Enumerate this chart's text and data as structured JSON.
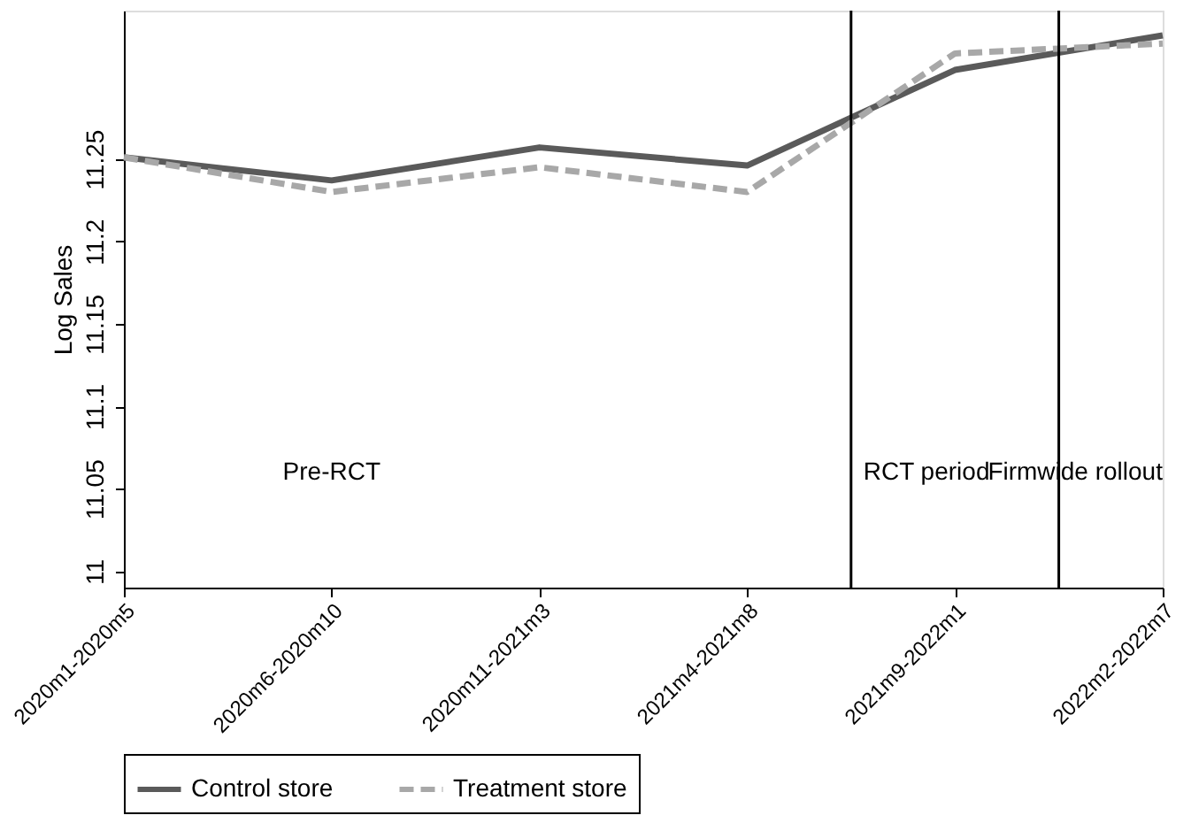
{
  "chart_data": {
    "type": "line",
    "ylabel": "Log Sales",
    "categories": [
      "2020m1-2020m5",
      "2020m6-2020m10",
      "2020m11-2021m3",
      "2021m4-2021m8",
      "2021m9-2022m1",
      "2022m2-2022m7"
    ],
    "series": [
      {
        "name": "Control store",
        "color": "#5a5a5a",
        "line_style": "solid",
        "values": [
          11.251,
          11.237,
          11.257,
          11.246,
          11.304,
          11.325
        ]
      },
      {
        "name": "Treatment store",
        "color": "#a8a8a8",
        "line_style": "dashed",
        "values": [
          11.251,
          11.23,
          11.245,
          11.23,
          11.314,
          11.32
        ]
      }
    ],
    "ylim": [
      10.99,
      11.34
    ],
    "yticks": [
      11,
      11.05,
      11.1,
      11.15,
      11.2,
      11.25
    ],
    "annotations": [
      "Pre-RCT",
      "RCT period",
      "Firmwide rollout"
    ],
    "grid": false,
    "legend": "bottom",
    "marker": "none"
  }
}
